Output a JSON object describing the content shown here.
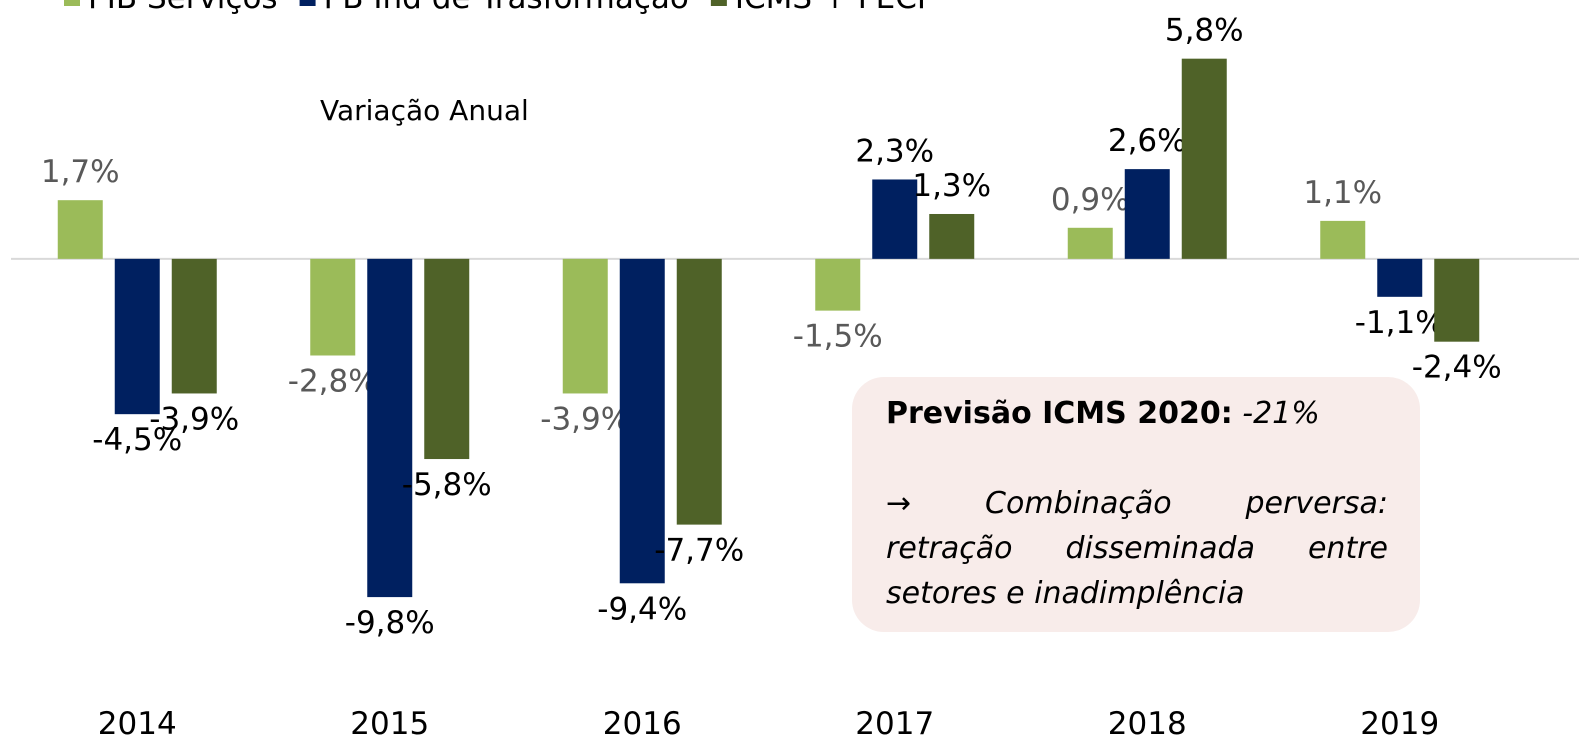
{
  "chart_data": {
    "type": "bar",
    "subtitle": "Variação Anual",
    "categories": [
      "2014",
      "2015",
      "2016",
      "2017",
      "2018",
      "2019"
    ],
    "series": [
      {
        "name": "PIB Serviços",
        "color": "#9bbb59",
        "label_color": "#595959",
        "values": [
          1.7,
          -2.8,
          -3.9,
          -1.5,
          0.9,
          1.1
        ],
        "value_labels": [
          "1,7%",
          "-2,8%",
          "-3,9%",
          "-1,5%",
          "0,9%",
          "1,1%"
        ]
      },
      {
        "name": "PB Ind de Trasformação",
        "color": "#002060",
        "label_color": "#000000",
        "values": [
          -4.5,
          -9.8,
          -9.4,
          2.3,
          2.6,
          -1.1
        ],
        "value_labels": [
          "-4,5%",
          "-9,8%",
          "-9,4%",
          "2,3%",
          "2,6%",
          "-1,1%"
        ]
      },
      {
        "name": "ICMS + FECP",
        "color": "#4f6228",
        "label_color": "#000000",
        "values": [
          -3.9,
          -5.8,
          -7.7,
          1.3,
          5.8,
          -2.4
        ],
        "value_labels": [
          "-3,9%",
          "-5,8%",
          "-7,7%",
          "1,3%",
          "5,8%",
          "-2,4%"
        ]
      }
    ],
    "ylim": [
      -10,
      7.5
    ],
    "grid": false,
    "callout": {
      "title": "Previsão ICMS 2020:",
      "value": "-21%",
      "text": "→ Combinação perversa: retração disseminada entre setores e inadimplência"
    }
  }
}
